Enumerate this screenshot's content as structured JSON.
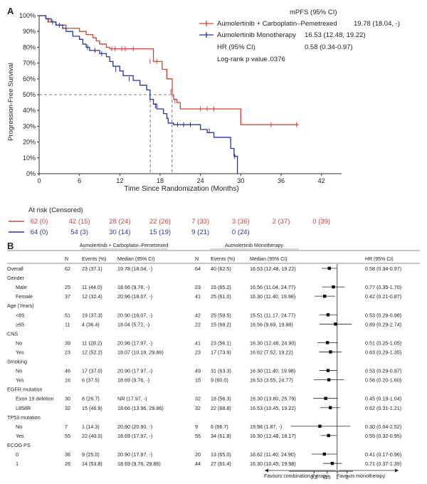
{
  "chart_data": [
    {
      "type": "line",
      "panel_label": "A",
      "ylabel": "Progression-Free Survival",
      "xlabel": "Time Since Randomization (Months)",
      "xlim": [
        0,
        45
      ],
      "ylim": [
        0,
        100
      ],
      "x_ticks": [
        "0",
        "6",
        "12",
        "18",
        "24",
        "30",
        "36",
        "42"
      ],
      "x_tick_values": [
        0,
        6,
        12,
        18,
        24,
        30,
        36,
        42
      ],
      "y_ticks": [
        "0%",
        "10%",
        "20%",
        "30%",
        "40%",
        "50%",
        "60%",
        "70%",
        "80%",
        "90%",
        "100%"
      ],
      "y_tick_values": [
        0,
        10,
        20,
        30,
        40,
        50,
        60,
        70,
        80,
        90,
        100
      ],
      "median_line_y": 50,
      "legend": {
        "header": "mPFS (95% CI)",
        "hr_label": "HR (95% CI)",
        "hr_value": "0.58 (0.34-0.97)",
        "p_label": "Log-rank p value",
        "p_value": ".0376"
      },
      "series": [
        {
          "name": "Aumolertinib + Carboplatin–Pemetrexed",
          "median_text": "19.78 (18.04, -)",
          "median": 19.78,
          "color": "#c8463e",
          "steps": [
            [
              0,
              100
            ],
            [
              1,
              98
            ],
            [
              1.4,
              96
            ],
            [
              2.5,
              94
            ],
            [
              4,
              92
            ],
            [
              6,
              90
            ],
            [
              7,
              88
            ],
            [
              8,
              86
            ],
            [
              8.5,
              84
            ],
            [
              9,
              82
            ],
            [
              10,
              80
            ],
            [
              10.5,
              79
            ],
            [
              17,
              71
            ],
            [
              18.3,
              66
            ],
            [
              19,
              60
            ],
            [
              19.8,
              50
            ],
            [
              20,
              47
            ],
            [
              20.5,
              45
            ],
            [
              21,
              41
            ],
            [
              30,
              31
            ],
            [
              38.6,
              31
            ]
          ],
          "censor": [
            [
              1.3,
              97
            ],
            [
              3.5,
              93
            ],
            [
              10.8,
              79
            ],
            [
              11.3,
              79
            ],
            [
              12.3,
              79
            ],
            [
              12.8,
              79
            ],
            [
              14,
              79
            ],
            [
              16.5,
              71
            ],
            [
              17.5,
              71
            ],
            [
              19.6,
              52
            ],
            [
              20.2,
              46
            ],
            [
              24,
              41
            ],
            [
              25,
              41
            ],
            [
              26,
              41
            ],
            [
              34.5,
              31
            ],
            [
              38.3,
              31
            ]
          ]
        },
        {
          "name": "Aumolertinib Monotherapy",
          "median_text": "16.53 (12.48, 19.22)",
          "median": 16.53,
          "color": "#26369a",
          "steps": [
            [
              0,
              100
            ],
            [
              1,
              98
            ],
            [
              1.8,
              96
            ],
            [
              2.5,
              94
            ],
            [
              3.5,
              92
            ],
            [
              4,
              90
            ],
            [
              5,
              87
            ],
            [
              6,
              85
            ],
            [
              6.5,
              82
            ],
            [
              7,
              80
            ],
            [
              7.5,
              78
            ],
            [
              9,
              76
            ],
            [
              10,
              74
            ],
            [
              10.5,
              71
            ],
            [
              11,
              68
            ],
            [
              12,
              65
            ],
            [
              12.5,
              62
            ],
            [
              14,
              59
            ],
            [
              15,
              56
            ],
            [
              16,
              53
            ],
            [
              16.5,
              47
            ],
            [
              17,
              44
            ],
            [
              17.5,
              41
            ],
            [
              18.5,
              38
            ],
            [
              19,
              35
            ],
            [
              19.2,
              32
            ],
            [
              20,
              31
            ],
            [
              24,
              28
            ],
            [
              25,
              26
            ],
            [
              26,
              23
            ],
            [
              28.5,
              16
            ],
            [
              29,
              11
            ],
            [
              29.5,
              0
            ]
          ],
          "censor": [
            [
              2,
              96
            ],
            [
              3,
              94
            ],
            [
              7.2,
              80
            ],
            [
              8.3,
              78
            ],
            [
              9.3,
              76
            ],
            [
              11.4,
              66
            ],
            [
              13.4,
              60
            ],
            [
              17.3,
              43
            ],
            [
              20.6,
              31
            ],
            [
              21.5,
              31
            ],
            [
              22.5,
              31
            ],
            [
              25.3,
              27
            ],
            [
              29.1,
              11
            ]
          ]
        }
      ]
    },
    {
      "type": "table",
      "panel_label": "B",
      "hr_axis_ticks": [
        "0.2",
        "0.5",
        "1",
        "2"
      ],
      "hr_axis_tick_values": [
        0.2,
        0.5,
        1,
        2
      ],
      "favours_left": "Favours combination therapy",
      "favours_right": "Favours monotherapy",
      "rows": [
        {
          "label": "Overall",
          "header": false,
          "n1": "62",
          "ev1": "23 (37.1)",
          "med1": "19.78 (18.04, -)",
          "n2": "64",
          "ev2": "40 (62.5)",
          "med2": "16.53 (12.48, 19.22)",
          "hr_text": "0.58 (0.34-0.97)",
          "hr": 0.58,
          "lo": 0.34,
          "hi": 0.97
        },
        {
          "label": "Gender",
          "header": true
        },
        {
          "label": "Male",
          "header": false,
          "n1": "25",
          "ev1": "11 (44.0)",
          "med1": "18.66 (9.76, -)",
          "n2": "23",
          "ev2": "15 (65.2)",
          "med2": "16.56 (11.04, 24.77)",
          "hr_text": "0.77 (0.35-1.70)",
          "hr": 0.77,
          "lo": 0.35,
          "hi": 1.7
        },
        {
          "label": "Female",
          "header": false,
          "n1": "37",
          "ev1": "12 (32.4)",
          "med1": "20.96 (18.07, -)",
          "n2": "41",
          "ev2": "25 (61.0)",
          "med2": "16.30 (11.40, 19.98)",
          "hr_text": "0.42 (0.21-0.87)",
          "hr": 0.42,
          "lo": 0.21,
          "hi": 0.87
        },
        {
          "label": "Age (Years)",
          "header": true
        },
        {
          "label": "<65",
          "header": false,
          "n1": "51",
          "ev1": "19 (37.3)",
          "med1": "20.90 (18.07, -)",
          "n2": "42",
          "ev2": "25 (59.5)",
          "med2": "15.51 (11.17, 24.77)",
          "hr_text": "0.53 (0.29-0.98)",
          "hr": 0.53,
          "lo": 0.29,
          "hi": 0.98
        },
        {
          "label": "≥65",
          "header": false,
          "n1": "11",
          "ev1": "4 (36.4)",
          "med1": "18.04 (5.72, -)",
          "n2": "22",
          "ev2": "15 (68.2)",
          "med2": "16.56 (9.69, 19.98)",
          "hr_text": "0.89 (0.29-2.74)",
          "hr": 0.89,
          "lo": 0.29,
          "hi": 2.74
        },
        {
          "label": "CNS",
          "header": true
        },
        {
          "label": "No",
          "header": false,
          "n1": "39",
          "ev1": "11 (28.2)",
          "med1": "20.96 (17.97, -)",
          "n2": "41",
          "ev2": "23 (56.1)",
          "med2": "16.30 (12.48, 24.90)",
          "hr_text": "0.51 (0.25-1.05)",
          "hr": 0.51,
          "lo": 0.25,
          "hi": 1.05
        },
        {
          "label": "Yes",
          "header": false,
          "n1": "23",
          "ev1": "12 (52.2)",
          "med1": "18.07 (10.18, 29.86)",
          "n2": "23",
          "ev2": "17 (73.9)",
          "med2": "16.62 (7.52, 19.22)",
          "hr_text": "0.63 (0.29-1.35)",
          "hr": 0.63,
          "lo": 0.29,
          "hi": 1.35
        },
        {
          "label": "Smoking",
          "header": true
        },
        {
          "label": "No",
          "header": false,
          "n1": "46",
          "ev1": "17 (37.0)",
          "med1": "20.90 (17.97, -)",
          "n2": "49",
          "ev2": "31 (63.3)",
          "med2": "16.30 (11.40, 19.98)",
          "hr_text": "0.53 (0.29-0.97)",
          "hr": 0.53,
          "lo": 0.29,
          "hi": 0.97
        },
        {
          "label": "Yes",
          "header": false,
          "n1": "16",
          "ev1": "6 (37.5)",
          "med1": "18.69 (9.76, -)",
          "n2": "15",
          "ev2": "9 (60.0)",
          "med2": "16.53 (3.55, 24.77)",
          "hr_text": "0.56 (0.20-1.60)",
          "hr": 0.56,
          "lo": 0.2,
          "hi": 1.6
        },
        {
          "label": "EGFR mutation",
          "header": true
        },
        {
          "label": "Exon 19 deletion",
          "header": false,
          "n1": "30",
          "ev1": "8 (26.7)",
          "med1": "NR (17.97, -)",
          "n2": "32",
          "ev2": "18 (56.3)",
          "med2": "16.30 (13.80, 25.79)",
          "hr_text": "0.45 (0.19-1.04)",
          "hr": 0.45,
          "lo": 0.19,
          "hi": 1.04
        },
        {
          "label": "L858R",
          "header": false,
          "n1": "32",
          "ev1": "15 (46.9)",
          "med1": "18.66 (13.96, 29.86)",
          "n2": "32",
          "ev2": "22 (68.8)",
          "med2": "16.53 (10.45, 19.22)",
          "hr_text": "0.62 (0.31-1.21)",
          "hr": 0.62,
          "lo": 0.31,
          "hi": 1.21
        },
        {
          "label": "TP53 mutation",
          "header": true
        },
        {
          "label": "No",
          "header": false,
          "n1": "7",
          "ev1": "1 (14.3)",
          "med1": "20.90 (20.90, -)",
          "n2": "9",
          "ev2": "6 (66.7)",
          "med2": "19.98 (1.87, -)",
          "hr_text": "0.30 (0.04-2.52)",
          "hr": 0.3,
          "lo": 0.04,
          "hi": 2.52
        },
        {
          "label": "Yes",
          "header": false,
          "n1": "55",
          "ev1": "22 (40.0)",
          "med1": "18.69 (17.97, -)",
          "n2": "55",
          "ev2": "34 (61.8)",
          "med2": "16.30 (12.48, 18.17)",
          "hr_text": "0.55 (0.32-0.95)",
          "hr": 0.55,
          "lo": 0.32,
          "hi": 0.95
        },
        {
          "label": "ECOG PS",
          "header": true
        },
        {
          "label": "0",
          "header": false,
          "n1": "36",
          "ev1": "9 (25.0)",
          "med1": "20.90 (17.97, -)",
          "n2": "20",
          "ev2": "13 (65.0)",
          "med2": "16.62 (11.40, 24.90)",
          "hr_text": "0.41 (0.17-0.96)",
          "hr": 0.41,
          "lo": 0.17,
          "hi": 0.96
        },
        {
          "label": "1",
          "header": false,
          "n1": "26",
          "ev1": "14 (53.8)",
          "med1": "18.69 (9.76, 29.86)",
          "n2": "44",
          "ev2": "27 (61.4)",
          "med2": "16.30 (10.45, 19.98)",
          "hr_text": "0.71 (0.37-1.39)",
          "hr": 0.71,
          "lo": 0.37,
          "hi": 1.39
        }
      ]
    }
  ],
  "at_risk": {
    "title": "At risk (Censored)",
    "times": [
      0,
      6,
      12,
      18,
      24,
      30,
      36,
      42
    ],
    "rows": [
      {
        "color": "#c8463e",
        "values": [
          "62 (0)",
          "42 (15)",
          "28 (24)",
          "22 (26)",
          "7 (33)",
          "3 (36)",
          "2 (37)",
          "0 (39)"
        ]
      },
      {
        "color": "#26369a",
        "values": [
          "64 (0)",
          "54 (3)",
          "30 (14)",
          "15 (19)",
          "9 (21)",
          "0 (24)"
        ]
      }
    ]
  },
  "forest_headers": {
    "group1": "Aumolertinib + Carboplatin–Pemetrexed",
    "group2": "Aumolertinib Monotherapy",
    "n": "N",
    "events": "Events (%)",
    "median": "Median (95% CI)",
    "hr": "HR (95% CI)"
  }
}
